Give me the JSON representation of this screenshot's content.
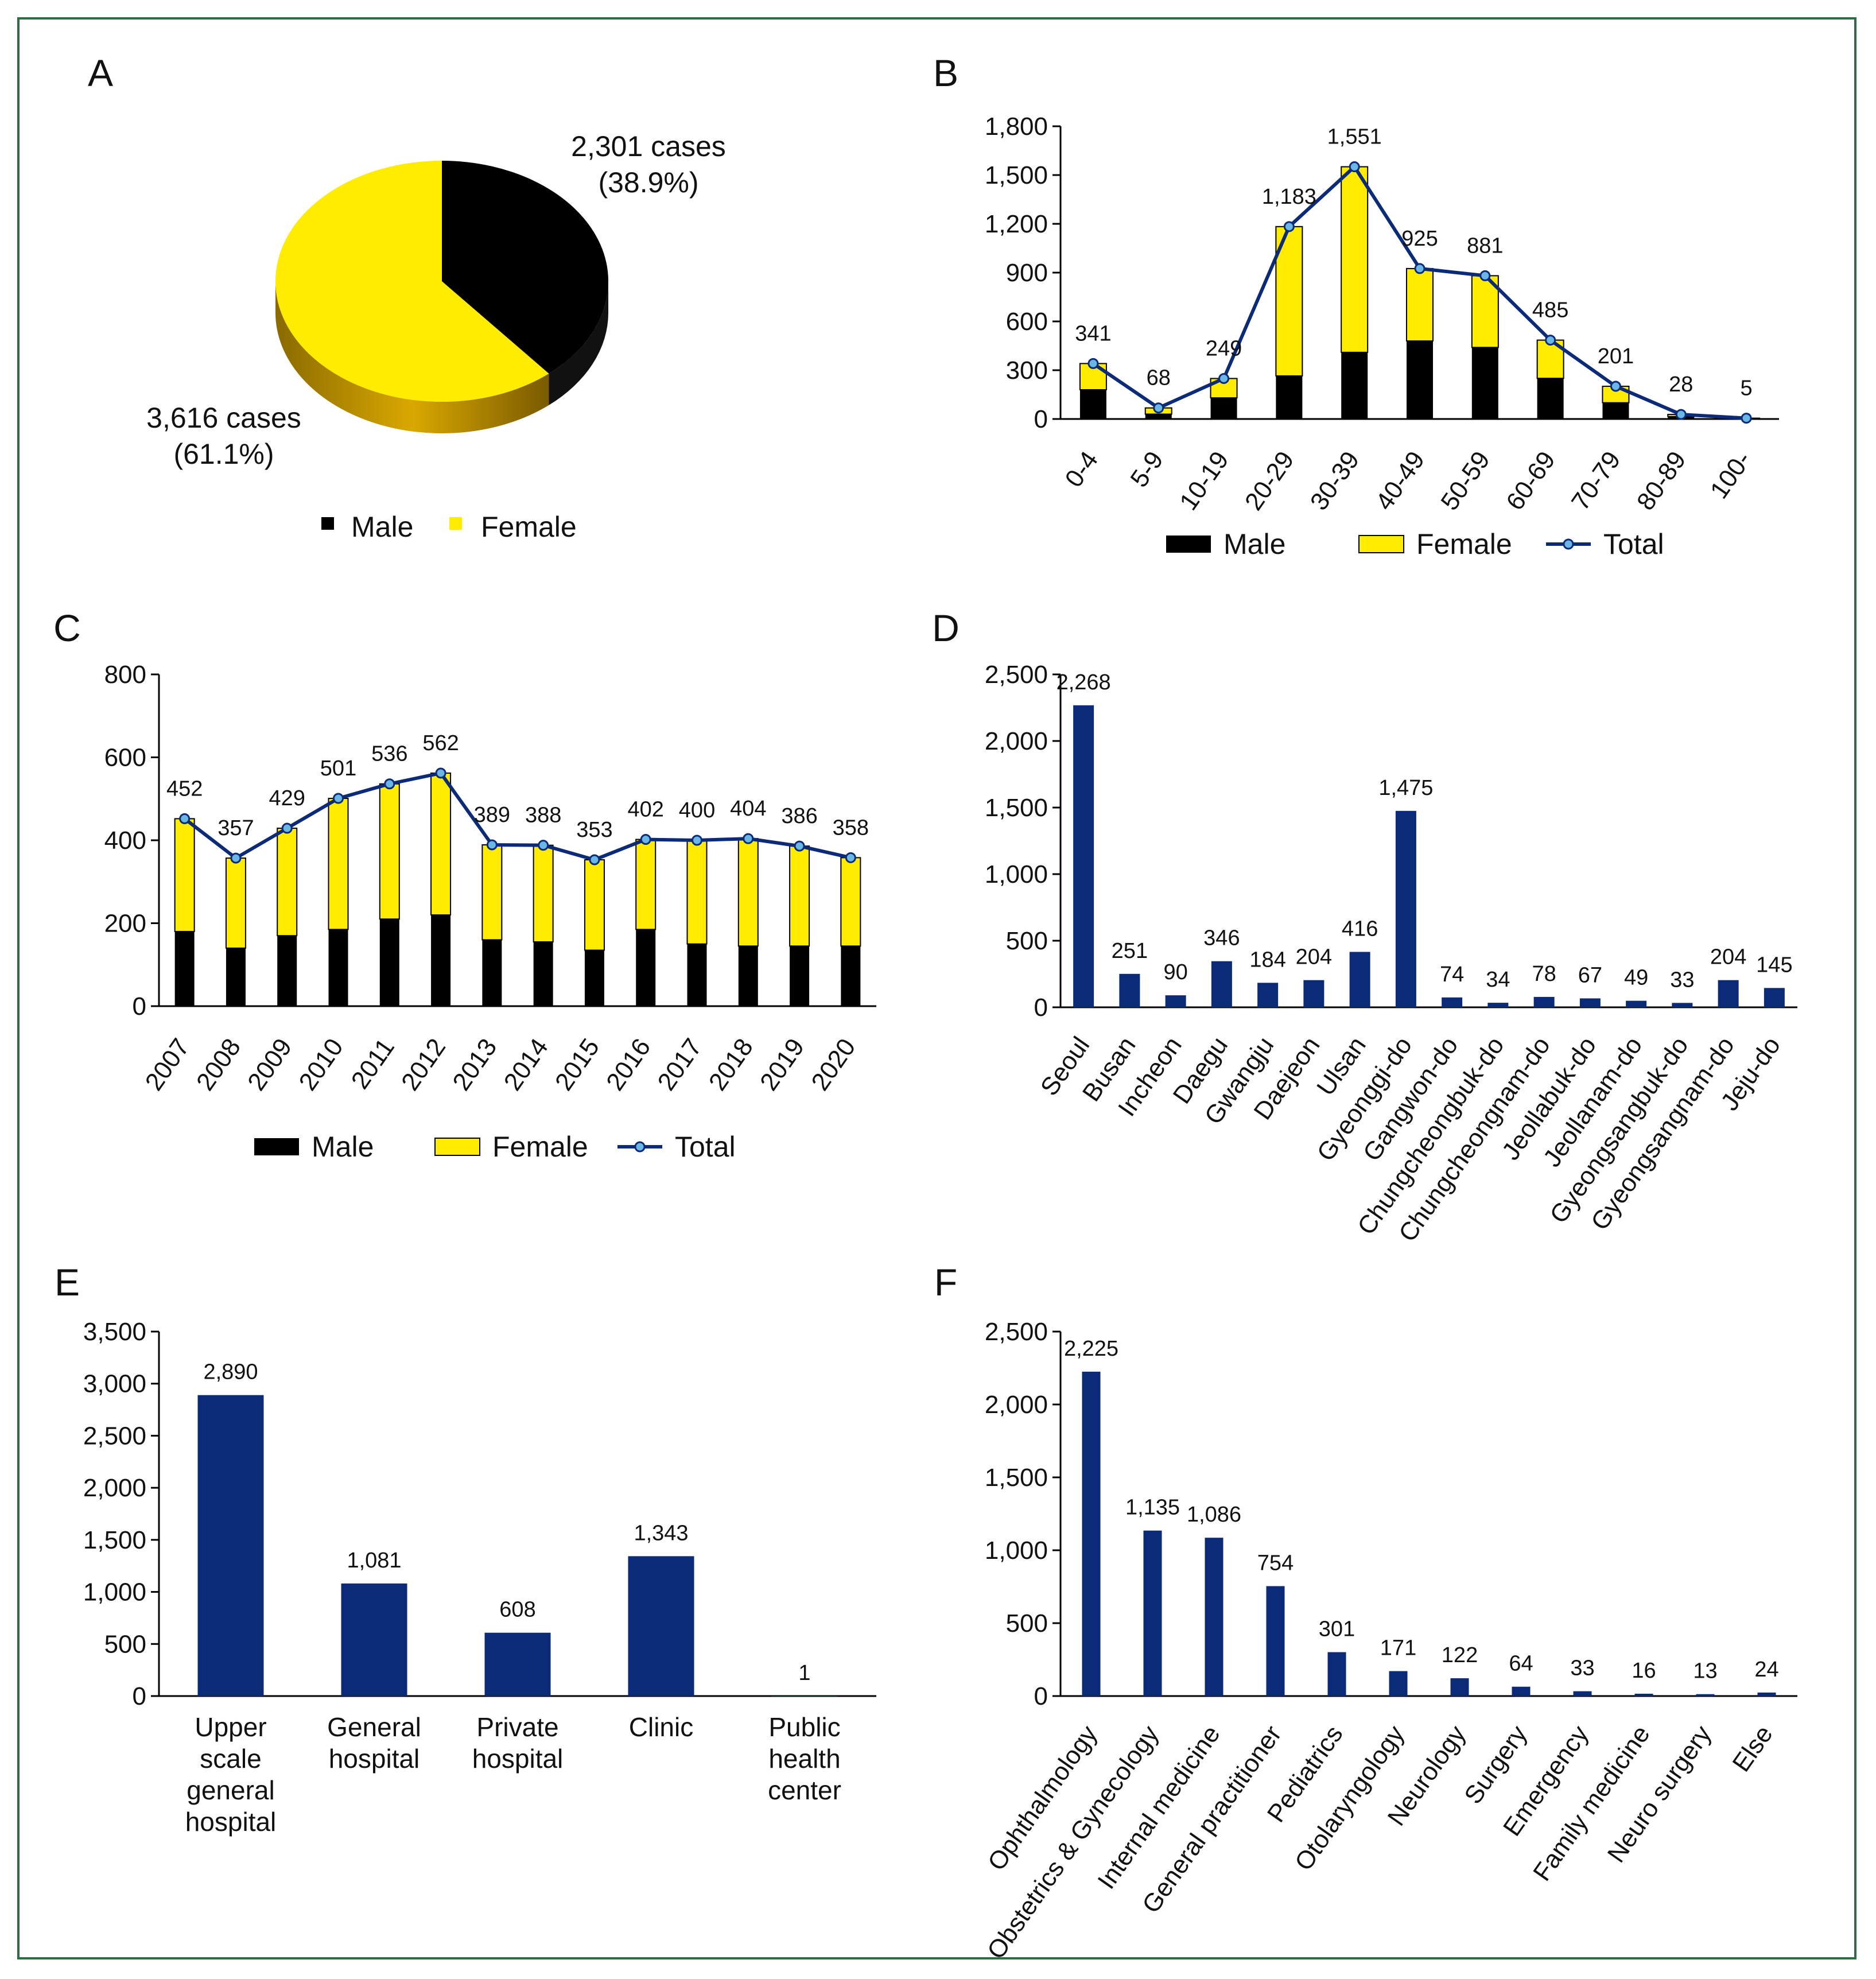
{
  "colors": {
    "male": "#000000",
    "female": "#ffec00",
    "bar": "#0b2a78",
    "line": "#0b2a78",
    "marker": "#6ab7e6",
    "border": "#2f6b45"
  },
  "chart_data": [
    {
      "panel": "A",
      "type": "pie",
      "slices": [
        {
          "name": "Male",
          "value": 2301,
          "label": "2,301 cases",
          "pct": "(38.9%)"
        },
        {
          "name": "Female",
          "value": 3616,
          "label": "3,616 cases",
          "pct": "(61.1%)"
        }
      ],
      "legend": [
        "Male",
        "Female"
      ]
    },
    {
      "panel": "B",
      "type": "bar",
      "categories": [
        "0-4",
        "5-9",
        "10-19",
        "20-29",
        "30-39",
        "40-49",
        "50-59",
        "60-69",
        "70-79",
        "80-89",
        "100-"
      ],
      "series": [
        {
          "name": "Male",
          "values": [
            180,
            30,
            130,
            265,
            410,
            480,
            440,
            250,
            100,
            15,
            3
          ]
        },
        {
          "name": "Female",
          "values": [
            161,
            38,
            119,
            918,
            1141,
            445,
            441,
            235,
            101,
            13,
            2
          ]
        },
        {
          "name": "Total",
          "values": [
            341,
            68,
            249,
            1183,
            1551,
            925,
            881,
            485,
            201,
            28,
            5
          ]
        }
      ],
      "data_labels": [
        "341",
        "68",
        "249",
        "1,183",
        "1,551",
        "925",
        "881",
        "485",
        "201",
        "28",
        "5"
      ],
      "yticks": [
        "0",
        "300",
        "600",
        "900",
        "1,200",
        "1,500",
        "1,800"
      ],
      "ylim": [
        0,
        1800
      ],
      "legend": [
        "Male",
        "Female",
        "Total"
      ]
    },
    {
      "panel": "C",
      "type": "bar",
      "categories": [
        "2007",
        "2008",
        "2009",
        "2010",
        "2011",
        "2012",
        "2013",
        "2014",
        "2015",
        "2016",
        "2017",
        "2018",
        "2019",
        "2020"
      ],
      "series": [
        {
          "name": "Male",
          "values": [
            180,
            140,
            170,
            185,
            210,
            220,
            160,
            155,
            135,
            185,
            150,
            145,
            145,
            145
          ]
        },
        {
          "name": "Female",
          "values": [
            272,
            217,
            259,
            316,
            326,
            342,
            229,
            233,
            218,
            217,
            250,
            259,
            241,
            213
          ]
        },
        {
          "name": "Total",
          "values": [
            452,
            357,
            429,
            501,
            536,
            562,
            389,
            388,
            353,
            402,
            400,
            404,
            386,
            358
          ]
        }
      ],
      "data_labels": [
        "452",
        "357",
        "429",
        "501",
        "536",
        "562",
        "389",
        "388",
        "353",
        "402",
        "400",
        "404",
        "386",
        "358"
      ],
      "yticks": [
        "0",
        "200",
        "400",
        "600",
        "800"
      ],
      "ylim": [
        0,
        800
      ],
      "legend": [
        "Male",
        "Female",
        "Total"
      ]
    },
    {
      "panel": "D",
      "type": "bar",
      "categories": [
        "Seoul",
        "Busan",
        "Incheon",
        "Daegu",
        "Gwangju",
        "Daejeon",
        "Ulsan",
        "Gyeonggi-do",
        "Gangwon-do",
        "Chungcheongbuk-do",
        "Chungcheongnam-do",
        "Jeollabuk-do",
        "Jeollanam-do",
        "Gyeongsangbuk-do",
        "Gyeongsangnam-do",
        "Jeju-do"
      ],
      "values": [
        2268,
        251,
        90,
        346,
        184,
        204,
        416,
        1475,
        74,
        34,
        78,
        67,
        49,
        33,
        204,
        145
      ],
      "data_labels": [
        "2,268",
        "251",
        "90",
        "346",
        "184",
        "204",
        "416",
        "1,475",
        "74",
        "34",
        "78",
        "67",
        "49",
        "33",
        "204",
        "145"
      ],
      "yticks": [
        "0",
        "500",
        "1,000",
        "1,500",
        "2,000",
        "2,500"
      ],
      "ylim": [
        0,
        2500
      ]
    },
    {
      "panel": "E",
      "type": "bar",
      "categories": [
        [
          "Upper",
          "scale",
          "general",
          "hospital"
        ],
        [
          "General",
          "hospital"
        ],
        [
          "Private",
          "hospital"
        ],
        [
          "Clinic"
        ],
        [
          "Public",
          "health",
          "center"
        ]
      ],
      "values": [
        2890,
        1081,
        608,
        1343,
        1
      ],
      "data_labels": [
        "2,890",
        "1,081",
        "608",
        "1,343",
        "1"
      ],
      "yticks": [
        "0",
        "500",
        "1,000",
        "1,500",
        "2,000",
        "2,500",
        "3,000",
        "3,500"
      ],
      "ylim": [
        0,
        3500
      ]
    },
    {
      "panel": "F",
      "type": "bar",
      "categories": [
        "Ophthalmology",
        "Obstetrics & Gynecology",
        "Internal medicine",
        "General practitioner",
        "Pediatrics",
        "Otolaryngology",
        "Neurology",
        "Surgery",
        "Emergency",
        "Family medicine",
        "Neuro surgery",
        "Else"
      ],
      "values": [
        2225,
        1135,
        1086,
        754,
        301,
        171,
        122,
        64,
        33,
        16,
        13,
        24
      ],
      "data_labels": [
        "2,225",
        "1,135",
        "1,086",
        "754",
        "301",
        "171",
        "122",
        "64",
        "33",
        "16",
        "13",
        "24"
      ],
      "yticks": [
        "0",
        "500",
        "1,000",
        "1,500",
        "2,000",
        "2,500"
      ],
      "ylim": [
        0,
        2500
      ]
    }
  ]
}
